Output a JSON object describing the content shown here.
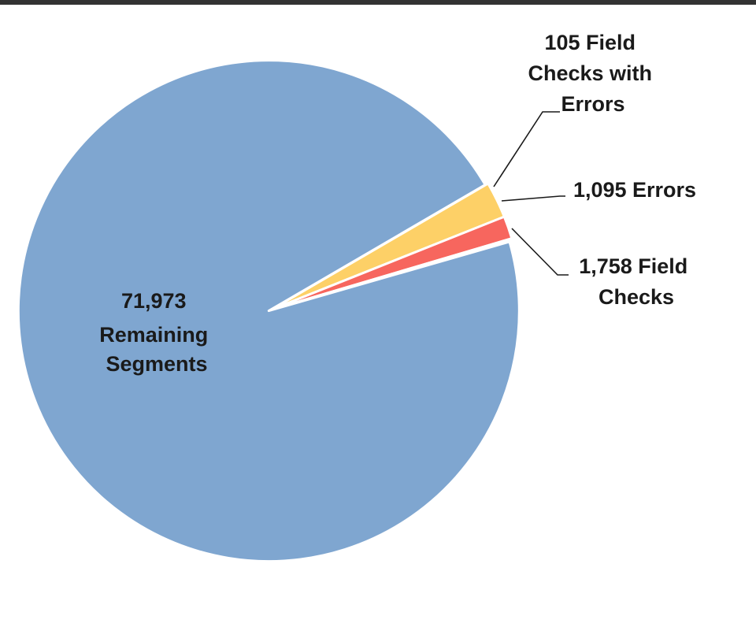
{
  "chart_data": {
    "type": "pie",
    "start_angle_deg": -16,
    "explode_index": 0,
    "slices": [
      {
        "label_lines": [
          "71,973",
          "Remaining",
          "Segments"
        ],
        "value": 71973,
        "color": "#7fa6d0"
      },
      {
        "label_lines": [
          "1,758 Field",
          "Checks"
        ],
        "value": 1758,
        "color": "#fdd067"
      },
      {
        "label_lines": [
          "1,095 Errors"
        ],
        "value": 1095,
        "color": "#f7665e"
      },
      {
        "label_lines": [
          "105 Field",
          "Checks with",
          "Errors"
        ],
        "value": 105,
        "color": "#f4b183"
      }
    ]
  }
}
